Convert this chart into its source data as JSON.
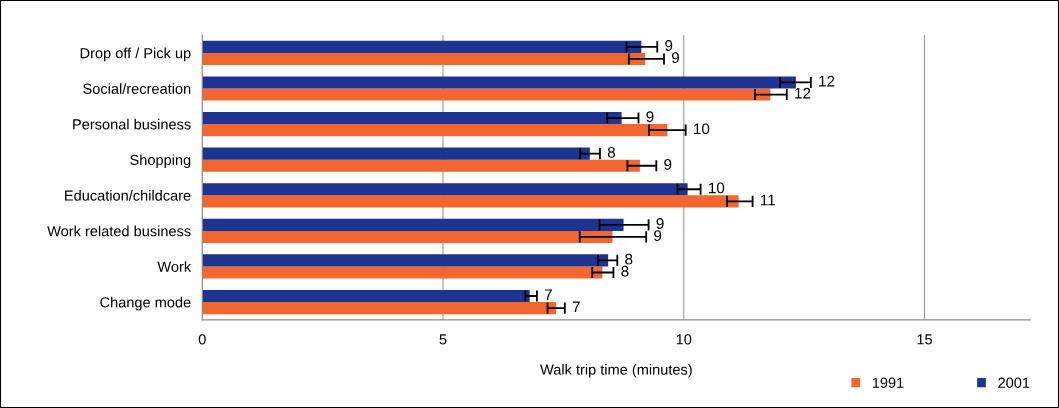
{
  "chart_data": {
    "type": "bar",
    "orientation": "horizontal",
    "xlabel": "Walk trip time (minutes)",
    "categories": [
      "Drop off / Pick up",
      "Social/recreation",
      "Personal business",
      "Shopping",
      "Education/childcare",
      "Work related business",
      "Work",
      "Change mode"
    ],
    "series": [
      {
        "name": "1991",
        "color": "#f26630",
        "values": [
          9.2,
          11.8,
          9.66,
          9.09,
          11.14,
          8.52,
          8.31,
          7.35
        ],
        "errors": [
          [
            8.86,
            9.59
          ],
          [
            11.48,
            12.14
          ],
          [
            9.28,
            10.04
          ],
          [
            8.83,
            9.43
          ],
          [
            10.9,
            11.43
          ],
          [
            7.84,
            9.22
          ],
          [
            8.1,
            8.54
          ],
          [
            7.17,
            7.53
          ]
        ],
        "value_labels": [
          "9",
          "12",
          "10",
          "9",
          "11",
          "9",
          "8",
          "7"
        ]
      },
      {
        "name": "2001",
        "color": "#1f3391",
        "values": [
          9.12,
          12.33,
          8.71,
          8.05,
          10.08,
          8.75,
          8.43,
          6.8
        ],
        "errors": [
          [
            8.81,
            9.45
          ],
          [
            12.0,
            12.64
          ],
          [
            8.41,
            9.06
          ],
          [
            7.85,
            8.26
          ],
          [
            9.87,
            10.35
          ],
          [
            8.25,
            9.27
          ],
          [
            8.22,
            8.62
          ],
          [
            6.71,
            6.95
          ]
        ],
        "value_labels": [
          "9",
          "12",
          "9",
          "8",
          "10",
          "9",
          "8",
          "7"
        ]
      }
    ],
    "xlim": [
      0,
      17.2
    ],
    "xticks": [
      0,
      5,
      10,
      15
    ],
    "grid": "x",
    "legend": "bottom right"
  }
}
